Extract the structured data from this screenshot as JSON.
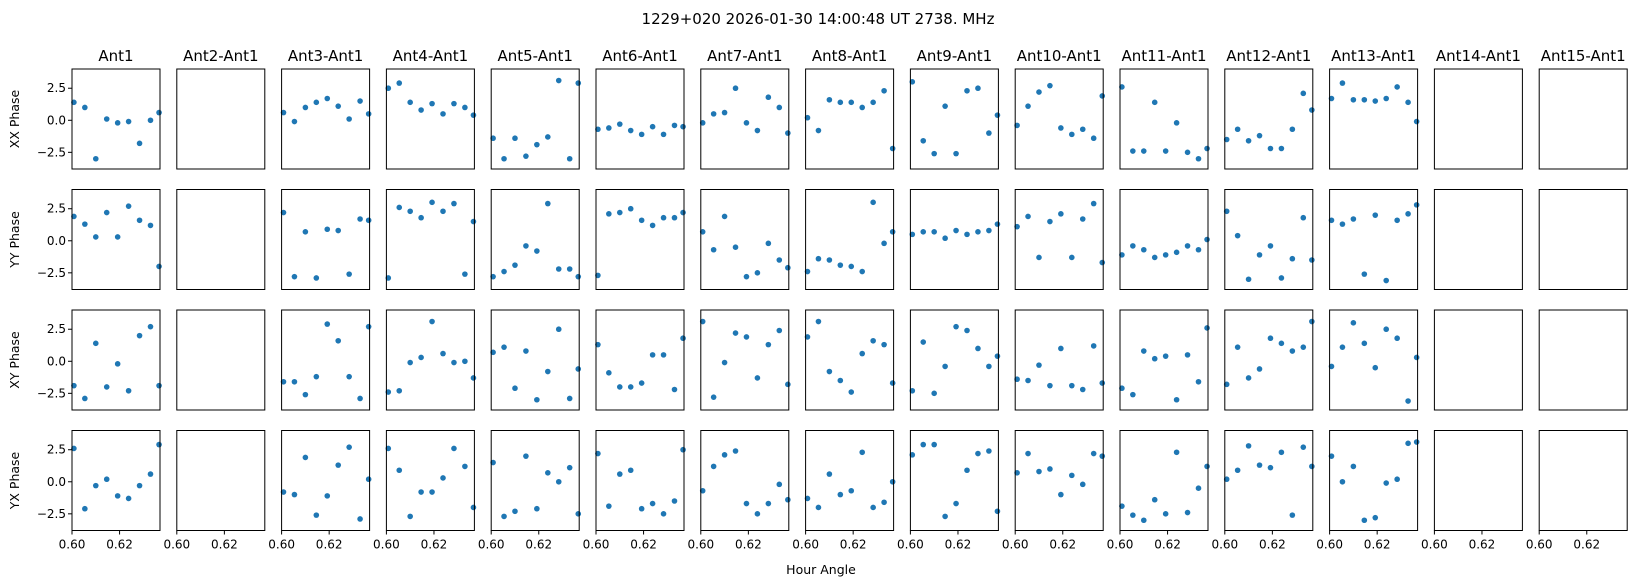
{
  "chart_data": {
    "type": "scatter",
    "title": "1229+020  2026-01-30 14:00:48 UT  2738. MHz",
    "xlabel": "Hour Angle",
    "xlim": [
      0.6,
      0.637
    ],
    "ylim": [
      -3.8,
      4.0
    ],
    "x_ticks": [
      0.6,
      0.62
    ],
    "x_tick_labels": [
      "0.60",
      "0.62"
    ],
    "y_ticks": [
      2.5,
      0.0,
      -2.5
    ],
    "y_tick_labels": [
      "2.5",
      "0.0",
      "−2.5"
    ],
    "marker_color": "#1f77b4",
    "x": [
      0.6008,
      0.6054,
      0.61,
      0.6146,
      0.6192,
      0.6238,
      0.6284,
      0.633,
      0.6366
    ],
    "columns": [
      "Ant1",
      "Ant2-Ant1",
      "Ant3-Ant1",
      "Ant4-Ant1",
      "Ant5-Ant1",
      "Ant6-Ant1",
      "Ant7-Ant1",
      "Ant8-Ant1",
      "Ant9-Ant1",
      "Ant10-Ant1",
      "Ant11-Ant1",
      "Ant12-Ant1",
      "Ant13-Ant1",
      "Ant14-Ant1",
      "Ant15-Ant1"
    ],
    "rows": [
      "XX Phase",
      "YY Phase",
      "XY Phase",
      "YX Phase"
    ],
    "series": [
      {
        "name": "XX Phase",
        "values": [
          [
            1.4,
            1.0,
            -3.0,
            0.1,
            -0.2,
            -0.1,
            -1.8,
            0.0,
            0.6
          ],
          [],
          [
            0.6,
            -0.1,
            1.0,
            1.4,
            1.7,
            1.1,
            0.1,
            1.5,
            0.5
          ],
          [
            2.5,
            2.9,
            1.4,
            0.8,
            1.3,
            0.5,
            1.3,
            1.0,
            0.4
          ],
          [
            -1.4,
            -3.0,
            -1.4,
            -2.8,
            -1.9,
            -1.3,
            3.1,
            -3.0,
            2.9
          ],
          [
            -0.7,
            -0.6,
            -0.3,
            -0.8,
            -1.1,
            -0.5,
            -1.1,
            -0.4,
            -0.5
          ],
          [
            -0.2,
            0.5,
            0.6,
            2.5,
            -0.2,
            -0.8,
            1.8,
            1.0,
            -1.0
          ],
          [
            0.2,
            -0.8,
            1.6,
            1.4,
            1.4,
            1.0,
            1.4,
            2.3,
            -2.2
          ],
          [
            3.0,
            -1.6,
            -2.6,
            1.1,
            -2.6,
            2.3,
            2.5,
            -1.0,
            0.4
          ],
          [
            -0.4,
            1.1,
            2.2,
            2.7,
            -0.6,
            -1.1,
            -0.7,
            -1.4,
            1.9
          ],
          [
            2.6,
            -2.4,
            -2.4,
            1.4,
            -2.4,
            -0.2,
            -2.5,
            -3.0,
            -2.2
          ],
          [
            -1.5,
            -0.7,
            -1.6,
            -1.2,
            -2.2,
            -2.2,
            -0.7,
            2.1,
            0.8
          ],
          [
            1.7,
            2.9,
            1.6,
            1.6,
            1.5,
            1.7,
            2.6,
            1.4,
            -0.1
          ],
          [],
          []
        ]
      },
      {
        "name": "YY Phase",
        "values": [
          [
            1.9,
            1.3,
            0.3,
            2.2,
            0.3,
            2.7,
            1.6,
            1.2,
            -2.0
          ],
          [],
          [
            2.2,
            -2.8,
            0.7,
            -2.9,
            0.9,
            0.8,
            -2.6,
            1.7,
            1.6
          ],
          [
            -2.9,
            2.6,
            2.3,
            1.8,
            3.0,
            2.3,
            2.9,
            -2.6,
            1.5
          ],
          [
            -2.8,
            -2.4,
            -1.9,
            -0.4,
            -0.8,
            2.9,
            -2.2,
            -2.2,
            -2.8
          ],
          [
            -2.7,
            2.1,
            2.2,
            2.5,
            1.6,
            1.2,
            1.8,
            1.8,
            2.2
          ],
          [
            0.7,
            -0.7,
            1.9,
            -0.5,
            -2.8,
            -2.5,
            -0.2,
            -1.5,
            -2.1
          ],
          [
            -2.4,
            -1.4,
            -1.5,
            -1.9,
            -2.0,
            -2.4,
            3.0,
            -0.2,
            0.7
          ],
          [
            0.5,
            0.7,
            0.7,
            0.2,
            0.8,
            0.5,
            0.7,
            0.8,
            1.3
          ],
          [
            1.1,
            1.9,
            -1.3,
            1.5,
            2.1,
            -1.3,
            1.7,
            2.9,
            -1.7
          ],
          [
            -1.1,
            -0.4,
            -0.7,
            -1.3,
            -1.1,
            -0.9,
            -0.4,
            -0.7,
            0.1
          ],
          [
            2.3,
            0.4,
            -3.0,
            -1.1,
            -0.4,
            -2.9,
            -1.4,
            1.8,
            -1.5
          ],
          [
            1.6,
            1.3,
            1.7,
            -2.6,
            2.0,
            -3.1,
            1.6,
            2.1,
            2.8
          ],
          [],
          []
        ]
      },
      {
        "name": "XY Phase",
        "values": [
          [
            -1.9,
            -2.9,
            1.4,
            -2.0,
            -0.2,
            -2.3,
            2.0,
            2.7,
            -1.9
          ],
          [],
          [
            -1.6,
            -1.6,
            -2.6,
            -1.2,
            2.9,
            1.6,
            -1.2,
            -2.9,
            2.7
          ],
          [
            -2.4,
            -2.3,
            -0.1,
            0.3,
            3.1,
            0.6,
            -0.1,
            0.0,
            -1.3
          ],
          [
            0.7,
            1.1,
            -2.1,
            0.8,
            -3.0,
            -0.8,
            2.5,
            -2.9,
            -0.6
          ],
          [
            1.3,
            -0.9,
            -2.0,
            -2.0,
            -1.7,
            0.5,
            0.5,
            -2.2,
            1.8
          ],
          [
            3.1,
            -2.8,
            -0.1,
            2.2,
            1.9,
            -1.3,
            1.3,
            2.4,
            -1.8
          ],
          [
            1.9,
            3.1,
            -0.8,
            -1.5,
            -2.4,
            0.6,
            1.6,
            1.3,
            -1.7
          ],
          [
            -2.3,
            1.5,
            -2.5,
            -0.4,
            2.7,
            2.4,
            1.0,
            -0.4,
            0.4
          ],
          [
            -1.4,
            -1.5,
            -0.3,
            -1.9,
            1.0,
            -1.9,
            -2.2,
            1.2,
            -1.7
          ],
          [
            -2.1,
            -2.6,
            0.8,
            0.2,
            0.4,
            -3.0,
            0.5,
            -1.6,
            2.6
          ],
          [
            -1.8,
            1.1,
            -1.3,
            -0.6,
            1.8,
            1.4,
            0.8,
            1.1,
            3.1
          ],
          [
            -0.4,
            1.1,
            3.0,
            1.4,
            -0.5,
            2.5,
            1.8,
            -3.1,
            0.3
          ],
          [],
          []
        ]
      },
      {
        "name": "YX Phase",
        "values": [
          [
            2.6,
            -2.1,
            -0.3,
            0.2,
            -1.1,
            -1.3,
            -0.3,
            0.6,
            2.9
          ],
          [],
          [
            -0.8,
            -1.0,
            1.9,
            -2.6,
            -1.1,
            1.3,
            2.7,
            -2.9,
            0.2
          ],
          [
            2.6,
            0.9,
            -2.7,
            -0.8,
            -0.8,
            0.3,
            2.6,
            1.2,
            -2.0
          ],
          [
            1.5,
            -2.7,
            -2.3,
            2.0,
            -2.1,
            0.7,
            0.0,
            1.1,
            -2.5
          ],
          [
            2.2,
            -1.9,
            0.6,
            0.9,
            -2.1,
            -1.7,
            -2.5,
            -1.5,
            2.5
          ],
          [
            -0.7,
            1.2,
            2.1,
            2.4,
            -1.7,
            -2.5,
            -1.7,
            -0.2,
            -1.4
          ],
          [
            -1.3,
            -2.0,
            0.6,
            -1.0,
            -0.7,
            2.3,
            -2.0,
            -1.6,
            0.0
          ],
          [
            2.1,
            2.9,
            2.9,
            -2.7,
            -1.7,
            0.9,
            2.2,
            2.4,
            -2.3
          ],
          [
            0.7,
            2.2,
            0.8,
            1.0,
            -1.0,
            0.5,
            -0.2,
            2.2,
            2.0
          ],
          [
            -1.9,
            -2.6,
            -3.0,
            -1.4,
            -2.5,
            2.3,
            -2.4,
            -0.5,
            1.2
          ],
          [
            0.2,
            0.9,
            2.8,
            1.3,
            1.1,
            2.3,
            -2.6,
            2.7,
            1.2
          ],
          [
            2.0,
            0.0,
            1.2,
            -3.0,
            -2.8,
            -0.1,
            0.2,
            3.0,
            3.1
          ],
          [],
          []
        ]
      }
    ]
  }
}
